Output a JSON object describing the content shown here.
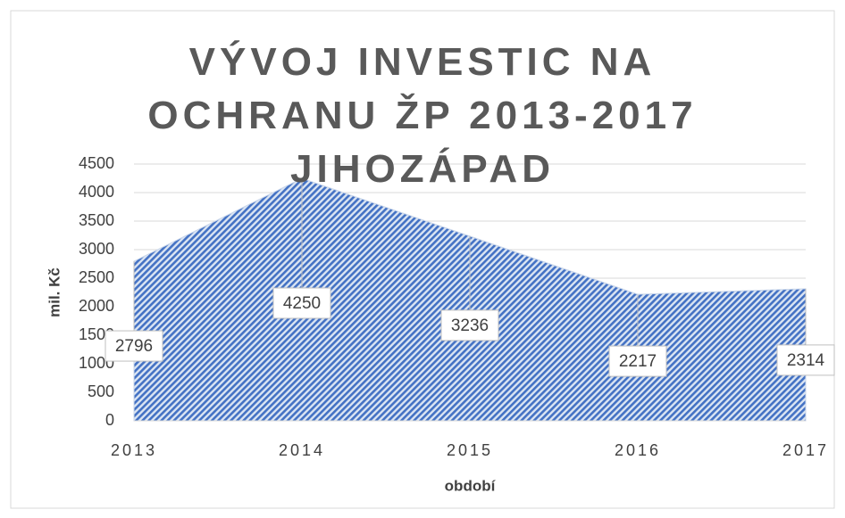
{
  "chart_data": {
    "type": "area",
    "title": "VÝVOJ INVESTIC NA OCHRANU ŽP 2013-2017 JIHOZÁPAD",
    "x_label": "období",
    "y_label": "mil. Kč",
    "categories": [
      "2013",
      "2014",
      "2015",
      "2016",
      "2017"
    ],
    "values": [
      2796,
      4250,
      3236,
      2217,
      2314
    ],
    "color": "#4472c4",
    "ylim": [
      0,
      4500
    ],
    "yticks": [
      0,
      500,
      1000,
      1500,
      2000,
      2500,
      3000,
      3500,
      4000,
      4500
    ],
    "grid": true
  }
}
